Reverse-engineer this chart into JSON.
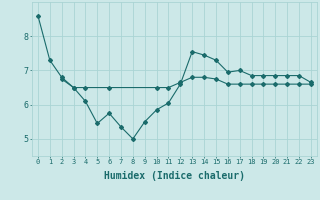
{
  "x": [
    0,
    1,
    2,
    3,
    4,
    5,
    6,
    7,
    8,
    9,
    10,
    11,
    12,
    13,
    14,
    15,
    16,
    17,
    18,
    19,
    20,
    21,
    22,
    23
  ],
  "line1": [
    8.6,
    7.3,
    6.8,
    6.5,
    6.1,
    5.45,
    5.75,
    5.35,
    5.0,
    5.5,
    5.85,
    6.05,
    6.6,
    7.55,
    7.45,
    7.3,
    6.95,
    7.0,
    6.85,
    6.85,
    6.85,
    6.85,
    6.85,
    6.65
  ],
  "line2": [
    null,
    null,
    6.75,
    6.5,
    6.5,
    null,
    6.5,
    null,
    null,
    null,
    6.5,
    6.5,
    6.65,
    6.8,
    6.8,
    6.75,
    6.6,
    6.6,
    6.6,
    6.6,
    6.6,
    6.6,
    6.6,
    6.6
  ],
  "bg_color": "#cce8e8",
  "line_color": "#1a6b6b",
  "grid_color": "#aad4d4",
  "xlabel": "Humidex (Indice chaleur)",
  "xlabel_fontsize": 7,
  "tick_fontsize_x": 5,
  "tick_fontsize_y": 6,
  "tick_color": "#1a6b6b",
  "ylim": [
    4.5,
    9.0
  ],
  "xlim": [
    -0.5,
    23.5
  ],
  "yticks": [
    5,
    6,
    7,
    8
  ],
  "xticks": [
    0,
    1,
    2,
    3,
    4,
    5,
    6,
    7,
    8,
    9,
    10,
    11,
    12,
    13,
    14,
    15,
    16,
    17,
    18,
    19,
    20,
    21,
    22,
    23
  ]
}
